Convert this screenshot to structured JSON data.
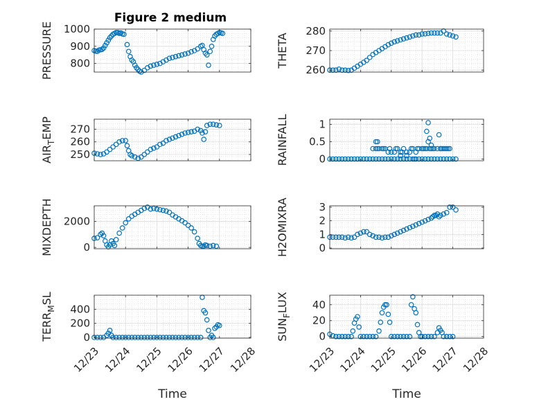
{
  "title": "Figure 2 medium",
  "marker_color": "#0072BD",
  "chart_data": [
    {
      "type": "scatter",
      "ylabel": "PRESSURE",
      "ylabel_sub": "",
      "ylabel_tail": "",
      "ylim": [
        750,
        1000
      ],
      "yticks": [
        800,
        900,
        1000
      ],
      "xlim": [
        0,
        5
      ],
      "xticks": [],
      "xticklabels": [],
      "xlabel": "",
      "x": [
        0,
        0.05,
        0.1,
        0.15,
        0.2,
        0.25,
        0.3,
        0.35,
        0.4,
        0.45,
        0.5,
        0.55,
        0.6,
        0.65,
        0.7,
        0.75,
        0.8,
        0.85,
        0.9,
        0.95,
        1.05,
        1.1,
        1.15,
        1.2,
        1.25,
        1.3,
        1.35,
        1.4,
        1.45,
        1.5,
        1.6,
        1.7,
        1.8,
        1.9,
        2.0,
        2.1,
        2.2,
        2.3,
        2.4,
        2.5,
        2.6,
        2.7,
        2.8,
        2.9,
        3.0,
        3.1,
        3.2,
        3.3,
        3.4,
        3.45,
        3.5,
        3.55,
        3.6,
        3.65,
        3.7,
        3.75,
        3.8,
        3.85,
        3.9,
        3.95,
        4.0,
        4.05,
        4.1
      ],
      "values": [
        875,
        872,
        870,
        878,
        880,
        882,
        890,
        905,
        920,
        935,
        950,
        960,
        970,
        975,
        980,
        980,
        975,
        978,
        972,
        970,
        910,
        870,
        840,
        820,
        810,
        790,
        775,
        765,
        755,
        750,
        760,
        775,
        785,
        790,
        795,
        800,
        810,
        820,
        830,
        835,
        840,
        845,
        850,
        855,
        860,
        868,
        875,
        885,
        900,
        905,
        880,
        860,
        850,
        790,
        870,
        900,
        940,
        960,
        970,
        975,
        980,
        978,
        975
      ]
    },
    {
      "type": "scatter",
      "ylabel": "THETA",
      "ylabel_sub": "",
      "ylabel_tail": "",
      "ylim": [
        259,
        281
      ],
      "yticks": [
        260,
        270,
        280
      ],
      "xlim": [
        0,
        5
      ],
      "xticks": [],
      "xticklabels": [],
      "xlabel": "",
      "x": [
        0,
        0.1,
        0.2,
        0.3,
        0.4,
        0.5,
        0.6,
        0.7,
        0.8,
        0.9,
        1.0,
        1.1,
        1.2,
        1.3,
        1.4,
        1.5,
        1.6,
        1.7,
        1.8,
        1.9,
        2.0,
        2.1,
        2.2,
        2.3,
        2.4,
        2.5,
        2.6,
        2.7,
        2.8,
        2.9,
        3.0,
        3.1,
        3.2,
        3.3,
        3.4,
        3.5,
        3.6,
        3.7,
        3.8,
        3.9,
        4.0,
        4.1
      ],
      "values": [
        260,
        260,
        260,
        260.5,
        260,
        260,
        259.8,
        260,
        261,
        262,
        263,
        264,
        265,
        266.5,
        268,
        269,
        270,
        271,
        272,
        273,
        273.8,
        274.5,
        275,
        275.5,
        276,
        276.5,
        277,
        277.5,
        278,
        278,
        278.5,
        278.6,
        278.8,
        279,
        279,
        279,
        279,
        280,
        278.5,
        278,
        277.5,
        277
      ]
    },
    {
      "type": "scatter",
      "ylabel": "AIR",
      "ylabel_sub": "T",
      "ylabel_tail": "EMP",
      "ylim": [
        245,
        278
      ],
      "yticks": [
        250,
        260,
        270
      ],
      "xlim": [
        0,
        5
      ],
      "xticks": [],
      "xticklabels": [],
      "xlabel": "",
      "x": [
        0,
        0.1,
        0.2,
        0.3,
        0.4,
        0.5,
        0.6,
        0.7,
        0.8,
        0.9,
        1.0,
        1.05,
        1.1,
        1.15,
        1.2,
        1.3,
        1.4,
        1.5,
        1.6,
        1.7,
        1.8,
        1.9,
        2.0,
        2.1,
        2.2,
        2.3,
        2.4,
        2.5,
        2.6,
        2.7,
        2.8,
        2.9,
        3.0,
        3.1,
        3.2,
        3.3,
        3.4,
        3.45,
        3.5,
        3.55,
        3.6,
        3.7,
        3.8,
        3.9,
        4.0
      ],
      "values": [
        251,
        250.5,
        250,
        250.5,
        252,
        254,
        256,
        258,
        260,
        261,
        261,
        257,
        253,
        250,
        249,
        248,
        247,
        248,
        250,
        252,
        254,
        255,
        256,
        258,
        259,
        261,
        262,
        263,
        264,
        265,
        266,
        267,
        267.5,
        268,
        268.5,
        270,
        269,
        267,
        262,
        268,
        273,
        274,
        274,
        273.5,
        273
      ]
    },
    {
      "type": "scatter",
      "ylabel": "RAINFALL",
      "ylabel_sub": "",
      "ylabel_tail": "",
      "ylim": [
        -0.05,
        1.15
      ],
      "yticks": [
        0,
        0.5,
        1
      ],
      "xlim": [
        0,
        5
      ],
      "xticks": [],
      "xticklabels": [],
      "xlabel": "",
      "x": [
        0,
        0.1,
        0.2,
        0.3,
        0.4,
        0.5,
        0.6,
        0.7,
        0.8,
        0.9,
        1.0,
        1.1,
        1.2,
        1.3,
        1.4,
        1.5,
        1.6,
        1.7,
        1.8,
        1.9,
        2.0,
        2.1,
        2.2,
        2.3,
        2.4,
        2.5,
        2.6,
        2.7,
        2.8,
        2.9,
        3.0,
        3.1,
        3.2,
        3.3,
        3.4,
        3.5,
        3.6,
        3.7,
        3.8,
        3.9,
        4.0,
        4.1,
        1.4,
        1.5,
        1.55,
        1.6,
        1.7,
        1.75,
        1.8,
        1.9,
        1.95,
        2.0,
        2.1,
        2.15,
        2.2,
        2.3,
        2.35,
        2.4,
        2.5,
        2.6,
        2.65,
        2.7,
        2.8,
        2.85,
        2.9,
        3.0,
        3.05,
        3.1,
        3.15,
        3.2,
        3.25,
        3.3,
        3.35,
        3.4,
        3.5,
        3.6,
        3.65,
        3.7,
        3.75,
        3.8,
        3.85,
        3.9,
        1.5,
        1.55,
        2.75,
        3.15,
        3.2,
        3.25,
        3.3,
        3.55,
        3.6,
        2.5,
        2.3
      ],
      "values": [
        0,
        0,
        0,
        0,
        0,
        0,
        0,
        0,
        0,
        0,
        0,
        0,
        0,
        0,
        0,
        0,
        0,
        0,
        0,
        0,
        0,
        0,
        0,
        0,
        0,
        0,
        0,
        0,
        0,
        0,
        0,
        0,
        0,
        0,
        0,
        0,
        0,
        0,
        0,
        0,
        0,
        0,
        0.3,
        0.3,
        0.3,
        0.3,
        0.3,
        0.3,
        0.3,
        0.2,
        0.3,
        0.2,
        0.2,
        0.3,
        0.3,
        0.2,
        0.2,
        0.3,
        0.2,
        0.2,
        0.3,
        0.3,
        0.2,
        0.3,
        0.3,
        0.3,
        0.3,
        0.3,
        0.3,
        0.5,
        0.3,
        0.3,
        0.3,
        0.3,
        0.3,
        0.3,
        0.3,
        0.3,
        0.3,
        0.3,
        0.3,
        0.3,
        0.5,
        0.5,
        0,
        0.8,
        1.05,
        0.6,
        0.4,
        0.7,
        0.3,
        0.1,
        0.1
      ]
    },
    {
      "type": "scatter",
      "ylabel": "MIXDEPTH",
      "ylabel_sub": "",
      "ylabel_tail": "",
      "ylim": [
        -100,
        3200
      ],
      "yticks": [
        0,
        2000
      ],
      "xlim": [
        0,
        5
      ],
      "xticks": [],
      "xticklabels": [],
      "xlabel": "",
      "x": [
        0,
        0.1,
        0.2,
        0.25,
        0.3,
        0.35,
        0.4,
        0.45,
        0.5,
        0.55,
        0.6,
        0.65,
        0.7,
        0.8,
        0.9,
        1.0,
        1.1,
        1.2,
        1.3,
        1.4,
        1.5,
        1.6,
        1.7,
        1.8,
        1.9,
        2.0,
        2.1,
        2.2,
        2.3,
        2.4,
        2.5,
        2.6,
        2.7,
        2.8,
        2.9,
        3.0,
        3.1,
        3.2,
        3.3,
        3.35,
        3.4,
        3.45,
        3.5,
        3.55,
        3.6,
        3.7,
        3.8,
        3.9
      ],
      "values": [
        700,
        750,
        1000,
        1100,
        900,
        500,
        200,
        50,
        200,
        500,
        300,
        150,
        600,
        1100,
        1500,
        1900,
        2200,
        2400,
        2550,
        2700,
        2850,
        3000,
        3100,
        2950,
        3000,
        2950,
        2900,
        2850,
        2800,
        2700,
        2500,
        2350,
        2200,
        2050,
        1900,
        1700,
        1500,
        1200,
        700,
        300,
        150,
        100,
        100,
        200,
        150,
        100,
        150,
        100
      ]
    },
    {
      "type": "scatter",
      "ylabel": "H2OMIXRA",
      "ylabel_sub": "",
      "ylabel_tail": "",
      "ylim": [
        -0.05,
        3.1
      ],
      "yticks": [
        0,
        1,
        2,
        3
      ],
      "xlim": [
        0,
        5
      ],
      "xticks": [],
      "xticklabels": [],
      "xlabel": "",
      "x": [
        0,
        0.1,
        0.2,
        0.3,
        0.4,
        0.5,
        0.6,
        0.7,
        0.8,
        0.9,
        1.0,
        1.1,
        1.2,
        1.3,
        1.4,
        1.5,
        1.6,
        1.7,
        1.8,
        1.9,
        2.0,
        2.1,
        2.2,
        2.3,
        2.4,
        2.5,
        2.6,
        2.7,
        2.8,
        2.9,
        3.0,
        3.1,
        3.2,
        3.3,
        3.35,
        3.4,
        3.45,
        3.5,
        3.55,
        3.6,
        3.7,
        3.8,
        3.9,
        4.0,
        4.1
      ],
      "values": [
        0.8,
        0.8,
        0.8,
        0.8,
        0.8,
        0.75,
        0.8,
        0.75,
        0.8,
        1.0,
        1.1,
        1.2,
        1.2,
        1.0,
        0.9,
        0.8,
        0.8,
        0.75,
        0.8,
        0.8,
        0.9,
        1.0,
        1.1,
        1.2,
        1.3,
        1.4,
        1.5,
        1.6,
        1.7,
        1.8,
        1.9,
        2.0,
        2.1,
        2.2,
        2.3,
        2.4,
        2.4,
        2.5,
        2.3,
        2.4,
        2.5,
        2.6,
        3.0,
        3.0,
        2.8
      ]
    },
    {
      "type": "scatter",
      "ylabel": "TERR",
      "ylabel_sub": "M",
      "ylabel_tail": "SL",
      "ylim": [
        -10,
        600
      ],
      "yticks": [
        0,
        200,
        400
      ],
      "xlim": [
        0,
        5
      ],
      "xticks": [
        0,
        1,
        2,
        3,
        4,
        5
      ],
      "xticklabels": [
        "12/23",
        "12/24",
        "12/25",
        "12/26",
        "12/27",
        "12/28"
      ],
      "xlabel": "Time",
      "x": [
        0,
        0.1,
        0.2,
        0.3,
        0.4,
        0.45,
        0.5,
        0.55,
        0.6,
        0.7,
        0.8,
        0.9,
        1.0,
        1.1,
        1.2,
        1.3,
        1.4,
        1.5,
        1.6,
        1.7,
        1.8,
        1.9,
        2.0,
        2.1,
        2.2,
        2.3,
        2.4,
        2.5,
        2.6,
        2.7,
        2.8,
        2.9,
        3.0,
        3.1,
        3.2,
        3.3,
        3.4,
        3.45,
        3.5,
        3.55,
        3.6,
        3.65,
        3.7,
        3.75,
        3.8,
        3.85,
        3.9,
        3.95,
        4.0
      ],
      "values": [
        0,
        0,
        0,
        0,
        30,
        60,
        100,
        30,
        0,
        0,
        0,
        0,
        0,
        0,
        0,
        0,
        0,
        0,
        0,
        0,
        0,
        0,
        0,
        0,
        0,
        0,
        0,
        0,
        0,
        0,
        0,
        0,
        0,
        0,
        0,
        0,
        0,
        570,
        380,
        350,
        250,
        100,
        0,
        30,
        0,
        130,
        150,
        180,
        170
      ]
    },
    {
      "type": "scatter",
      "ylabel": "SUN",
      "ylabel_sub": "F",
      "ylabel_tail": "LUX",
      "ylim": [
        -2,
        52
      ],
      "yticks": [
        0,
        20,
        40
      ],
      "xlim": [
        0,
        5
      ],
      "xticks": [
        0,
        1,
        2,
        3,
        4,
        5
      ],
      "xticklabels": [
        "12/23",
        "12/24",
        "12/25",
        "12/26",
        "12/27",
        "12/28"
      ],
      "xlabel": "Time",
      "x": [
        0,
        0.1,
        0.2,
        0.3,
        0.4,
        0.5,
        0.6,
        0.7,
        0.75,
        0.8,
        0.85,
        0.9,
        0.95,
        1.0,
        1.1,
        1.2,
        1.3,
        1.4,
        1.5,
        1.6,
        1.65,
        1.7,
        1.75,
        1.8,
        1.85,
        1.9,
        1.95,
        2.0,
        2.1,
        2.2,
        2.3,
        2.4,
        2.5,
        2.6,
        2.65,
        2.7,
        2.75,
        2.8,
        2.85,
        2.9,
        2.95,
        3.0,
        3.1,
        3.2,
        3.3,
        3.4,
        3.5,
        3.55,
        3.6,
        3.65,
        3.7,
        3.8,
        3.9,
        4.0
      ],
      "values": [
        3,
        1,
        0,
        0,
        0,
        0,
        0,
        0,
        7,
        17,
        22,
        25,
        12,
        0,
        0,
        0,
        0,
        0,
        0,
        7,
        18,
        30,
        37,
        40,
        40,
        28,
        18,
        0,
        0,
        0,
        0,
        0,
        0,
        0,
        40,
        50,
        35,
        30,
        15,
        5,
        0,
        0,
        0,
        0,
        0,
        0,
        5,
        11,
        8,
        5,
        0,
        0,
        0,
        0
      ]
    }
  ]
}
